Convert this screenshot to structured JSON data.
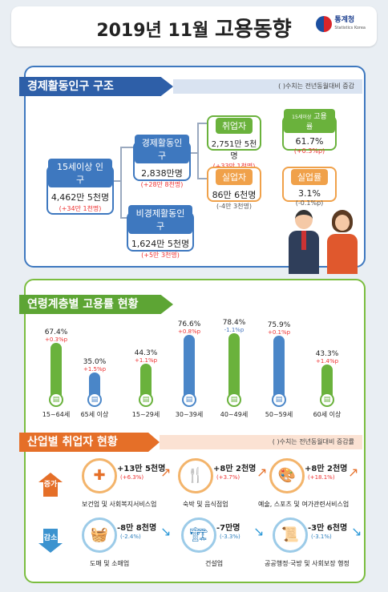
{
  "header": {
    "title_prefix": "2019년 11월",
    "title_main": "고용동향",
    "logo_name": "통계청",
    "logo_sub": "Statistics Korea"
  },
  "structure": {
    "section_title": "경제활동인구 구조",
    "note": "( )수치는 전년동월대비 증감",
    "pop15": {
      "label": "15세이상 인구",
      "value": "4,462만 5천명",
      "change": "(+34만 1천명)"
    },
    "active": {
      "label": "경제활동인구",
      "value": "2,838만명",
      "change": "(+28만 8천명)"
    },
    "inactive": {
      "label": "비경제활동인구",
      "value": "1,624만 5천명",
      "change": "(+5만 3천명)"
    },
    "employed": {
      "label": "취업자",
      "value": "2,751만 5천명",
      "change": "(+33만 1천명)"
    },
    "emp_rate": {
      "label_small": "15세이상",
      "label": "고용률",
      "value": "61.7%",
      "change": "(+0.3%p)"
    },
    "unemployed": {
      "label": "실업자",
      "value": "86만 6천명",
      "change": "(-4만 3천명)"
    },
    "unemp_rate": {
      "label": "실업률",
      "value": "3.1%",
      "change": "(-0.1%p)"
    }
  },
  "age": {
    "section_title": "연령계층별 고용률 현황",
    "groups": [
      {
        "label": "15~64세",
        "pct": "67.4%",
        "change": "+0.3%p",
        "value": 67.4,
        "color": "#6ab23c",
        "neg": false
      },
      {
        "label": "65세 이상",
        "pct": "35.0%",
        "change": "+1.5%p",
        "value": 35.0,
        "color": "#4a86c8",
        "neg": false
      },
      {
        "label": "15~29세",
        "pct": "44.3%",
        "change": "+1.1%p",
        "value": 44.3,
        "color": "#6ab23c",
        "neg": false
      },
      {
        "label": "30~39세",
        "pct": "76.6%",
        "change": "+0.8%p",
        "value": 76.6,
        "color": "#4a86c8",
        "neg": false
      },
      {
        "label": "40~49세",
        "pct": "78.4%",
        "change": "-1.1%p",
        "value": 78.4,
        "color": "#6ab23c",
        "neg": true
      },
      {
        "label": "50~59세",
        "pct": "75.9%",
        "change": "+0.1%p",
        "value": 75.9,
        "color": "#4a86c8",
        "neg": false
      },
      {
        "label": "60세 이상",
        "pct": "43.3%",
        "change": "+1.4%p",
        "value": 43.3,
        "color": "#6ab23c",
        "neg": false
      }
    ]
  },
  "industry": {
    "section_title": "산업별 취업자 현황",
    "note": "( )수치는 전년동월대비 증감률",
    "increase_label": "증가",
    "decrease_label": "감소",
    "increase": [
      {
        "name": "보건업 및 사회복지서비스업",
        "value": "+13만 5천명",
        "change": "(+6.3%)"
      },
      {
        "name": "숙박 및 음식점업",
        "value": "+8만 2천명",
        "change": "(+3.7%)"
      },
      {
        "name": "예술, 스포츠 및 여가관련서비스업",
        "value": "+8만 2천명",
        "change": "(+18.1%)"
      }
    ],
    "decrease": [
      {
        "name": "도매 및 소매업",
        "value": "-8만 8천명",
        "change": "(-2.4%)"
      },
      {
        "name": "건설업",
        "value": "-7만명",
        "change": "(-3.3%)"
      },
      {
        "name": "공공행정·국방 및 사회보장 행정",
        "value": "-3만 6천명",
        "change": "(-3.1%)"
      }
    ]
  }
}
